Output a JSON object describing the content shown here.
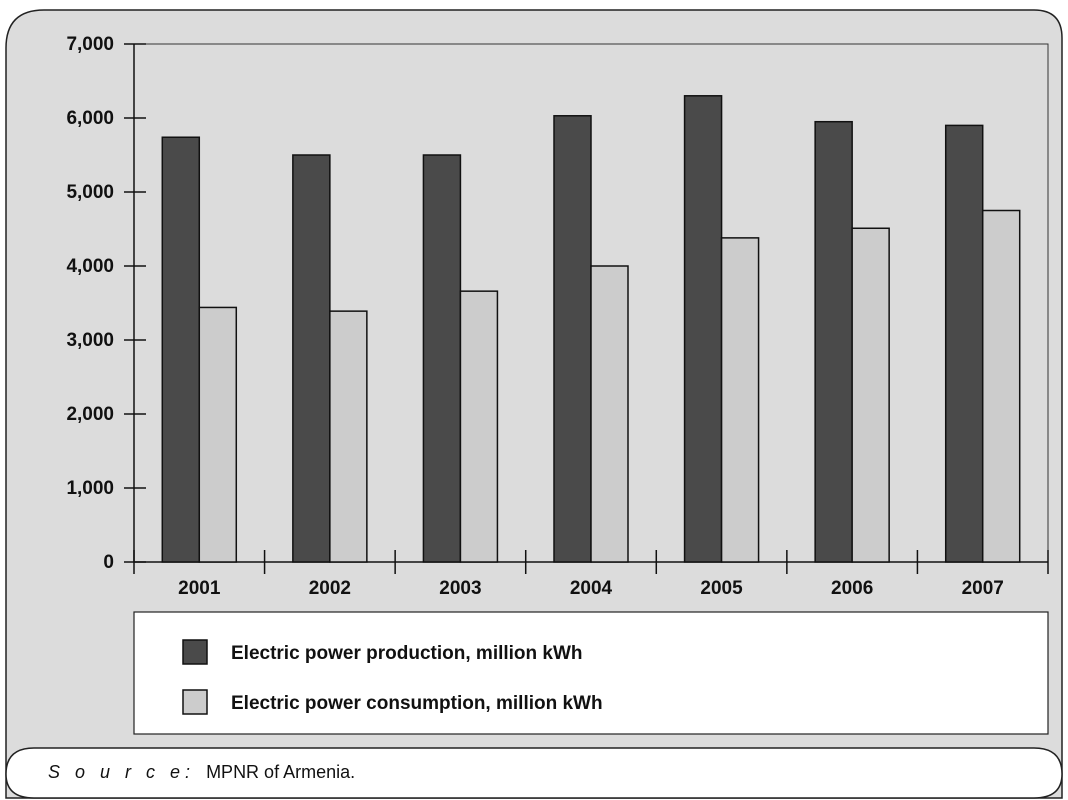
{
  "chart_data": {
    "type": "bar",
    "categories": [
      "2001",
      "2002",
      "2003",
      "2004",
      "2005",
      "2006",
      "2007"
    ],
    "series": [
      {
        "name": "Electric power production, million kWh",
        "values": [
          5740,
          5500,
          5500,
          6030,
          6300,
          5950,
          5900
        ],
        "color": "#4a4a4a"
      },
      {
        "name": "Electric power consumption, million kWh",
        "values": [
          3440,
          3390,
          3660,
          4000,
          4380,
          4510,
          4750
        ],
        "color": "#cccccc"
      }
    ],
    "y_ticks": [
      "0",
      "1,000",
      "2,000",
      "3,000",
      "4,000",
      "5,000",
      "6,000",
      "7,000"
    ],
    "ylim": [
      0,
      7000
    ],
    "grid": false,
    "legend_position": "bottom",
    "background_color": "#dcdcdc"
  },
  "source": {
    "label": "S o u r c e:",
    "text": "MPNR of Armenia."
  }
}
